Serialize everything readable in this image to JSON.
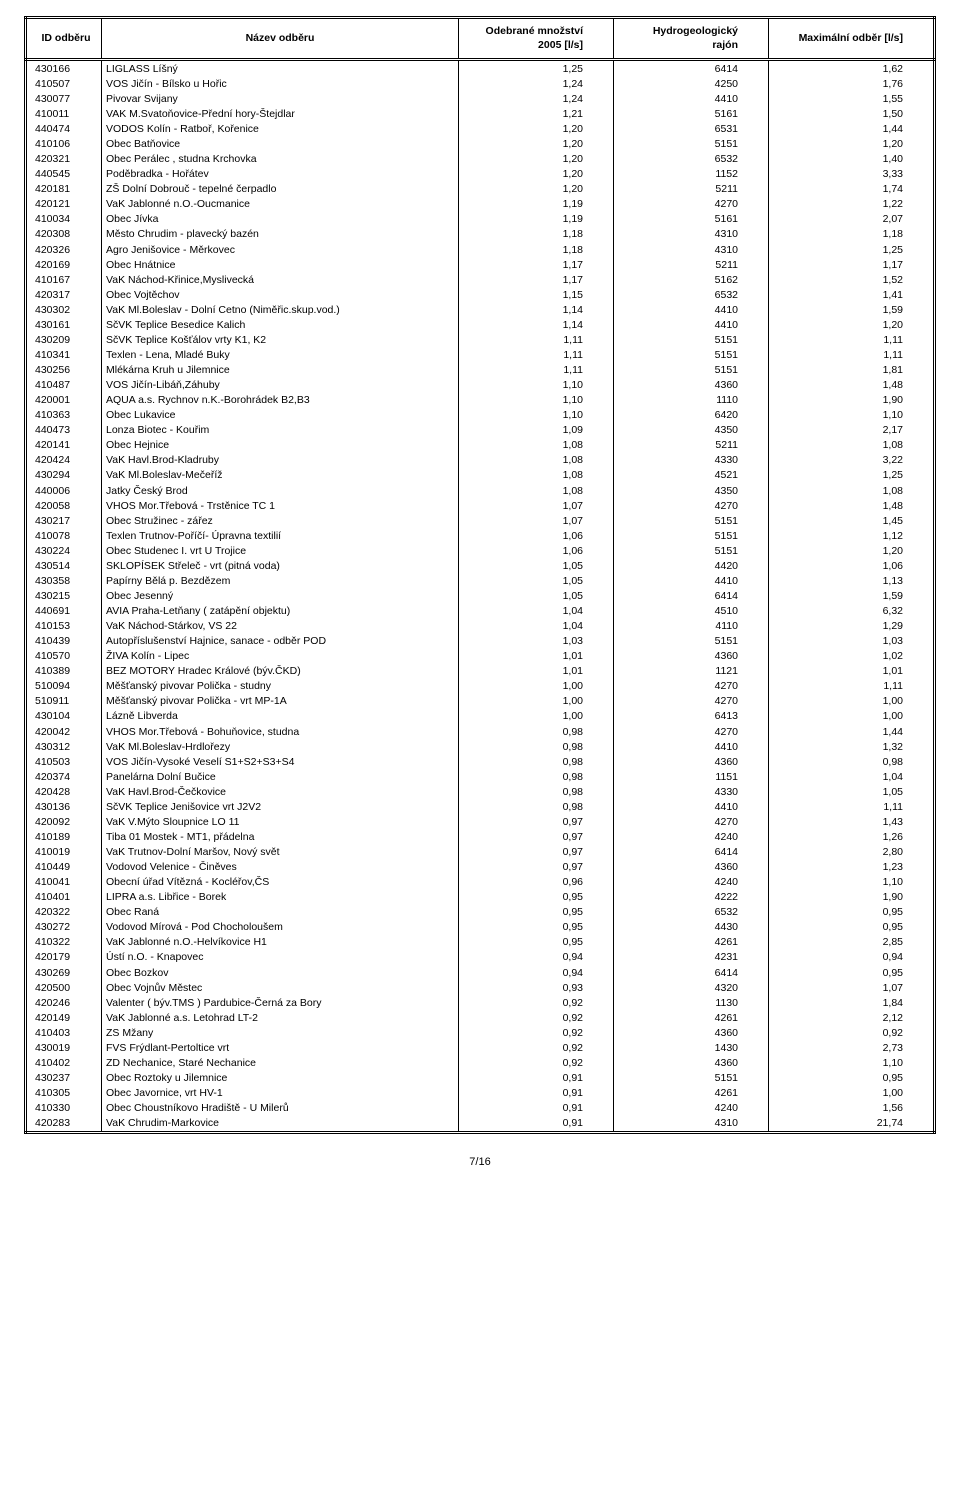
{
  "table": {
    "columns": [
      {
        "key": "id",
        "label": "ID odběru",
        "class": "col-id"
      },
      {
        "key": "name",
        "label": "Název odběru",
        "class": "col-name"
      },
      {
        "key": "qty",
        "label": "Odebrané množství\n2005 [l/s]",
        "class": "col-qty"
      },
      {
        "key": "raj",
        "label": "Hydrogeologický\nrajón",
        "class": "col-raj"
      },
      {
        "key": "max",
        "label": "Maximální odběr [l/s]",
        "class": "col-max"
      }
    ],
    "rows": [
      [
        "430166",
        "LIGLASS Líšný",
        "1,25",
        "6414",
        "1,62"
      ],
      [
        "410507",
        "VOS Jičín - Bílsko u Hořic",
        "1,24",
        "4250",
        "1,76"
      ],
      [
        "430077",
        "Pivovar Svijany",
        "1,24",
        "4410",
        "1,55"
      ],
      [
        "410011",
        "VAK M.Svatoňovice-Přední hory-Štejdlar",
        "1,21",
        "5161",
        "1,50"
      ],
      [
        "440474",
        "VODOS Kolín - Ratboř, Kořenice",
        "1,20",
        "6531",
        "1,44"
      ],
      [
        "410106",
        "Obec Batňovice",
        "1,20",
        "5151",
        "1,20"
      ],
      [
        "420321",
        "Obec Perálec , studna Krchovka",
        "1,20",
        "6532",
        "1,40"
      ],
      [
        "440545",
        "Poděbradka - Hořátev",
        "1,20",
        "1152",
        "3,33"
      ],
      [
        "420181",
        "ZŠ Dolní Dobrouč - tepelné čerpadlo",
        "1,20",
        "5211",
        "1,74"
      ],
      [
        "420121",
        "VaK Jablonné n.O.-Oucmanice",
        "1,19",
        "4270",
        "1,22"
      ],
      [
        "410034",
        "Obec Jívka",
        "1,19",
        "5161",
        "2,07"
      ],
      [
        "420308",
        "Město Chrudim - plavecký bazén",
        "1,18",
        "4310",
        "1,18"
      ],
      [
        "420326",
        "Agro Jenišovice - Měrkovec",
        "1,18",
        "4310",
        "1,25"
      ],
      [
        "420169",
        "Obec Hnátnice",
        "1,17",
        "5211",
        "1,17"
      ],
      [
        "410167",
        "VaK Náchod-Křinice,Myslivecká",
        "1,17",
        "5162",
        "1,52"
      ],
      [
        "420317",
        "Obec  Vojtěchov",
        "1,15",
        "6532",
        "1,41"
      ],
      [
        "430302",
        "VaK Ml.Boleslav - Dolní Cetno (Niměřic.skup.vod.)",
        "1,14",
        "4410",
        "1,59"
      ],
      [
        "430161",
        "SčVK Teplice Besedice Kalich",
        "1,14",
        "4410",
        "1,20"
      ],
      [
        "430209",
        "SčVK Teplice Košťálov vrty K1, K2",
        "1,11",
        "5151",
        "1,11"
      ],
      [
        "410341",
        "Texlen - Lena, Mladé Buky",
        "1,11",
        "5151",
        "1,11"
      ],
      [
        "430256",
        "Mlékárna Kruh u Jilemnice",
        "1,11",
        "5151",
        "1,81"
      ],
      [
        "410487",
        "VOS Jičín-Libáň,Záhuby",
        "1,10",
        "4360",
        "1,48"
      ],
      [
        "420001",
        "AQUA a.s. Rychnov n.K.-Borohrádek B2,B3",
        "1,10",
        "1110",
        "1,90"
      ],
      [
        "410363",
        "Obec Lukavice",
        "1,10",
        "6420",
        "1,10"
      ],
      [
        "440473",
        "Lonza Biotec - Kouřim",
        "1,09",
        "4350",
        "2,17"
      ],
      [
        "420141",
        "Obec Hejnice",
        "1,08",
        "5211",
        "1,08"
      ],
      [
        "420424",
        "VaK Havl.Brod-Kladruby",
        "1,08",
        "4330",
        "3,22"
      ],
      [
        "430294",
        "VaK Ml.Boleslav-Mečeříž",
        "1,08",
        "4521",
        "1,25"
      ],
      [
        "440006",
        "Jatky Český Brod",
        "1,08",
        "4350",
        "1,08"
      ],
      [
        "420058",
        "VHOS Mor.Třebová - Trstěnice TC 1",
        "1,07",
        "4270",
        "1,48"
      ],
      [
        "430217",
        "Obec Stružinec - zářez",
        "1,07",
        "5151",
        "1,45"
      ],
      [
        "410078",
        "Texlen Trutnov-Poříčí- Úpravna textilií",
        "1,06",
        "5151",
        "1,12"
      ],
      [
        "430224",
        "Obec Studenec I. vrt U Trojice",
        "1,06",
        "5151",
        "1,20"
      ],
      [
        "430514",
        "SKLOPÍSEK Střeleč - vrt (pitná voda)",
        "1,05",
        "4420",
        "1,06"
      ],
      [
        "430358",
        "Papírny Bělá p. Bezdězem",
        "1,05",
        "4410",
        "1,13"
      ],
      [
        "430215",
        "Obec  Jesenný",
        "1,05",
        "6414",
        "1,59"
      ],
      [
        "440691",
        "AVIA Praha-Letňany ( zatápění objektu)",
        "1,04",
        "4510",
        "6,32"
      ],
      [
        "410153",
        "VaK Náchod-Stárkov, VS 22",
        "1,04",
        "4110",
        "1,29"
      ],
      [
        "410439",
        "Autopříslušenství Hajnice, sanace - odběr POD",
        "1,03",
        "5151",
        "1,03"
      ],
      [
        "410570",
        "ŽIVA Kolín - Lipec",
        "1,01",
        "4360",
        "1,02"
      ],
      [
        "410389",
        "BEZ MOTORY Hradec Králové (býv.ČKD)",
        "1,01",
        "1121",
        "1,01"
      ],
      [
        "510094",
        "Měšťanský pivovar Polička - studny",
        "1,00",
        "4270",
        "1,11"
      ],
      [
        "510911",
        "Měšťanský pivovar Polička - vrt MP-1A",
        "1,00",
        "4270",
        "1,00"
      ],
      [
        "430104",
        "Lázně Libverda",
        "1,00",
        "6413",
        "1,00"
      ],
      [
        "420042",
        "VHOS Mor.Třebová - Bohuňovice, studna",
        "0,98",
        "4270",
        "1,44"
      ],
      [
        "430312",
        "VaK Ml.Boleslav-Hrdlořezy",
        "0,98",
        "4410",
        "1,32"
      ],
      [
        "410503",
        "VOS Jičín-Vysoké Veselí S1+S2+S3+S4",
        "0,98",
        "4360",
        "0,98"
      ],
      [
        "420374",
        "Panelárna Dolní Bučice",
        "0,98",
        "1151",
        "1,04"
      ],
      [
        "420428",
        "VaK Havl.Brod-Čečkovice",
        "0,98",
        "4330",
        "1,05"
      ],
      [
        "430136",
        "SčVK Teplice Jenišovice vrt J2V2",
        "0,98",
        "4410",
        "1,11"
      ],
      [
        "420092",
        "VaK V.Mýto  Sloupnice LO 11",
        "0,97",
        "4270",
        "1,43"
      ],
      [
        "410189",
        "Tiba 01 Mostek - MT1, přádelna",
        "0,97",
        "4240",
        "1,26"
      ],
      [
        "410019",
        "VaK Trutnov-Dolní Maršov, Nový svět",
        "0,97",
        "6414",
        "2,80"
      ],
      [
        "410449",
        "Vodovod Velenice - Činěves",
        "0,97",
        "4360",
        "1,23"
      ],
      [
        "410041",
        "Obecní úřad Vítězná - Kocléřov,ČS",
        "0,96",
        "4240",
        "1,10"
      ],
      [
        "410401",
        "LIPRA a.s. Libřice - Borek",
        "0,95",
        "4222",
        "1,90"
      ],
      [
        "420322",
        "Obec Raná",
        "0,95",
        "6532",
        "0,95"
      ],
      [
        "430272",
        "Vodovod Mírová - Pod Chocholoušem",
        "0,95",
        "4430",
        "0,95"
      ],
      [
        "410322",
        "VaK Jablonné n.O.-Helvíkovice H1",
        "0,95",
        "4261",
        "2,85"
      ],
      [
        "420179",
        "Ústí n.O. - Knapovec",
        "0,94",
        "4231",
        "0,94"
      ],
      [
        "430269",
        "Obec Bozkov",
        "0,94",
        "6414",
        "0,95"
      ],
      [
        "420500",
        "Obec Vojnův Městec",
        "0,93",
        "4320",
        "1,07"
      ],
      [
        "420246",
        "Valenter ( býv.TMS ) Pardubice-Černá za Bory",
        "0,92",
        "1130",
        "1,84"
      ],
      [
        "420149",
        "VaK Jablonné a.s. Letohrad LT-2",
        "0,92",
        "4261",
        "2,12"
      ],
      [
        "410403",
        "ZS Mžany",
        "0,92",
        "4360",
        "0,92"
      ],
      [
        "430019",
        "FVS Frýdlant-Pertoltice vrt",
        "0,92",
        "1430",
        "2,73"
      ],
      [
        "410402",
        "ZD Nechanice, Staré Nechanice",
        "0,92",
        "4360",
        "1,10"
      ],
      [
        "430237",
        "Obec Roztoky u Jilemnice",
        "0,91",
        "5151",
        "0,95"
      ],
      [
        "410305",
        "Obec Javornice, vrt HV-1",
        "0,91",
        "4261",
        "1,00"
      ],
      [
        "410330",
        "Obec Choustníkovo Hradiště - U Milerů",
        "0,91",
        "4240",
        "1,56"
      ],
      [
        "420283",
        "VaK Chrudim-Markovice",
        "0,91",
        "4310",
        "21,74"
      ]
    ]
  },
  "footer": "7/16"
}
